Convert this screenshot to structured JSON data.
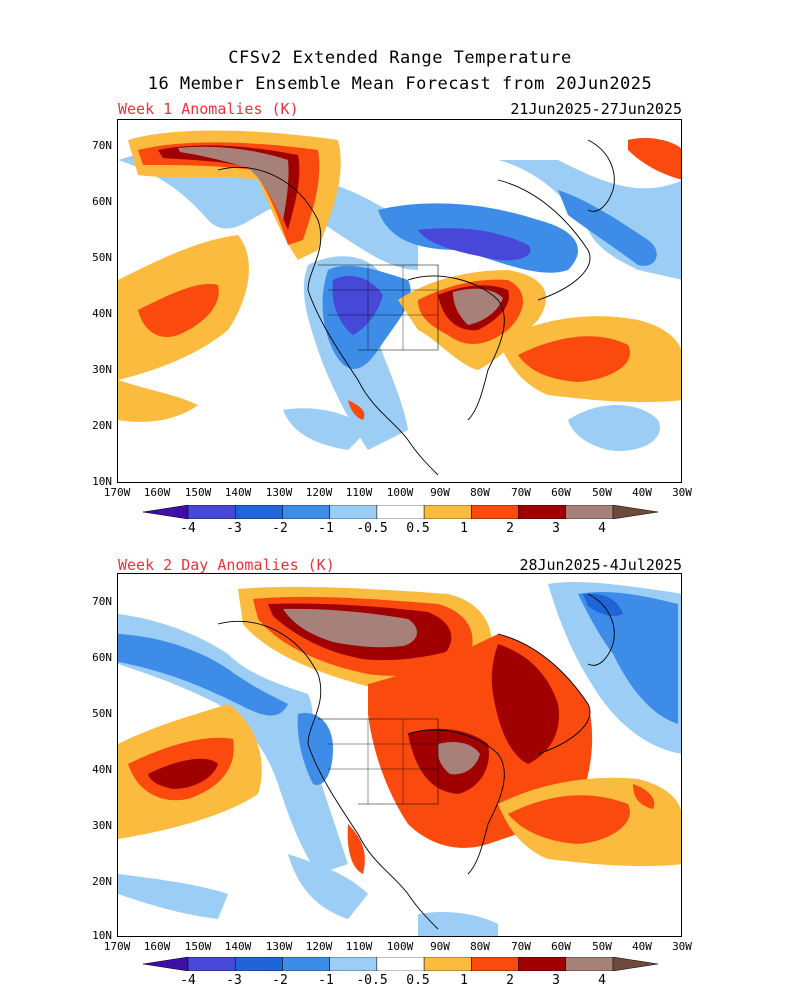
{
  "header": {
    "title_line1": "CFSv2 Extended Range Temperature",
    "title_line2": "16 Member Ensemble Mean Forecast from 20Jun2025"
  },
  "panels": [
    {
      "title": "Week 1 Anomalies (K)",
      "date_range": "21Jun2025-27Jun2025"
    },
    {
      "title": "Week 2 Day Anomalies (K)",
      "date_range": "28Jun2025-4Jul2025"
    }
  ],
  "axes": {
    "lat_labels": [
      "70N",
      "60N",
      "50N",
      "40N",
      "30N",
      "20N",
      "10N"
    ],
    "lon_labels": [
      "170W",
      "160W",
      "150W",
      "140W",
      "130W",
      "120W",
      "110W",
      "100W",
      "90W",
      "80W",
      "70W",
      "60W",
      "50W",
      "40W",
      "30W"
    ]
  },
  "colorbar": {
    "labels": [
      "-4",
      "-3",
      "-2",
      "-1",
      "-0.5",
      "0.5",
      "1",
      "2",
      "3",
      "4"
    ],
    "colors": [
      "#3f0fa8",
      "#4848d8",
      "#1f64d8",
      "#3c8ce8",
      "#9ccdf5",
      "#ffffff",
      "#fbbb3e",
      "#fa4a0e",
      "#a00000",
      "#a7807a",
      "#6e4a3a"
    ]
  },
  "palette": {
    "title_color": "#e8343a"
  }
}
